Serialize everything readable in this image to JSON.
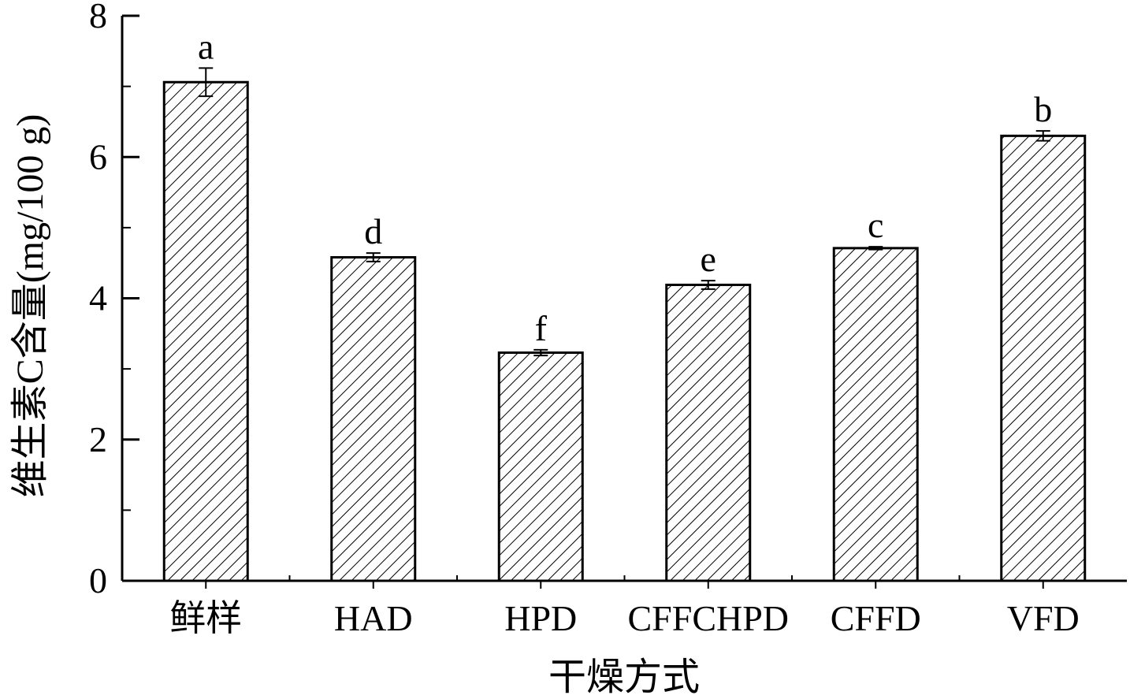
{
  "chart_data": {
    "type": "bar",
    "title": "",
    "xlabel": "干燥方式",
    "ylabel": "维生素C含量(mg/100 g)",
    "ylim": [
      0,
      8
    ],
    "yticks": [
      "0",
      "2",
      "4",
      "6",
      "8"
    ],
    "grid": false,
    "categories": [
      "鲜样",
      "HAD",
      "HPD",
      "CFFCHPD",
      "CFFD",
      "VFD"
    ],
    "values": [
      7.06,
      4.58,
      3.23,
      4.19,
      4.71,
      6.3
    ],
    "errors": [
      0.2,
      0.06,
      0.04,
      0.06,
      0.02,
      0.07
    ],
    "significance": [
      "a",
      "d",
      "f",
      "e",
      "c",
      "b"
    ],
    "bar_fill": "hatched-diagonal",
    "colors": {
      "bar_stroke": "#000000",
      "hatch": "#000000",
      "background": "#ffffff"
    }
  }
}
